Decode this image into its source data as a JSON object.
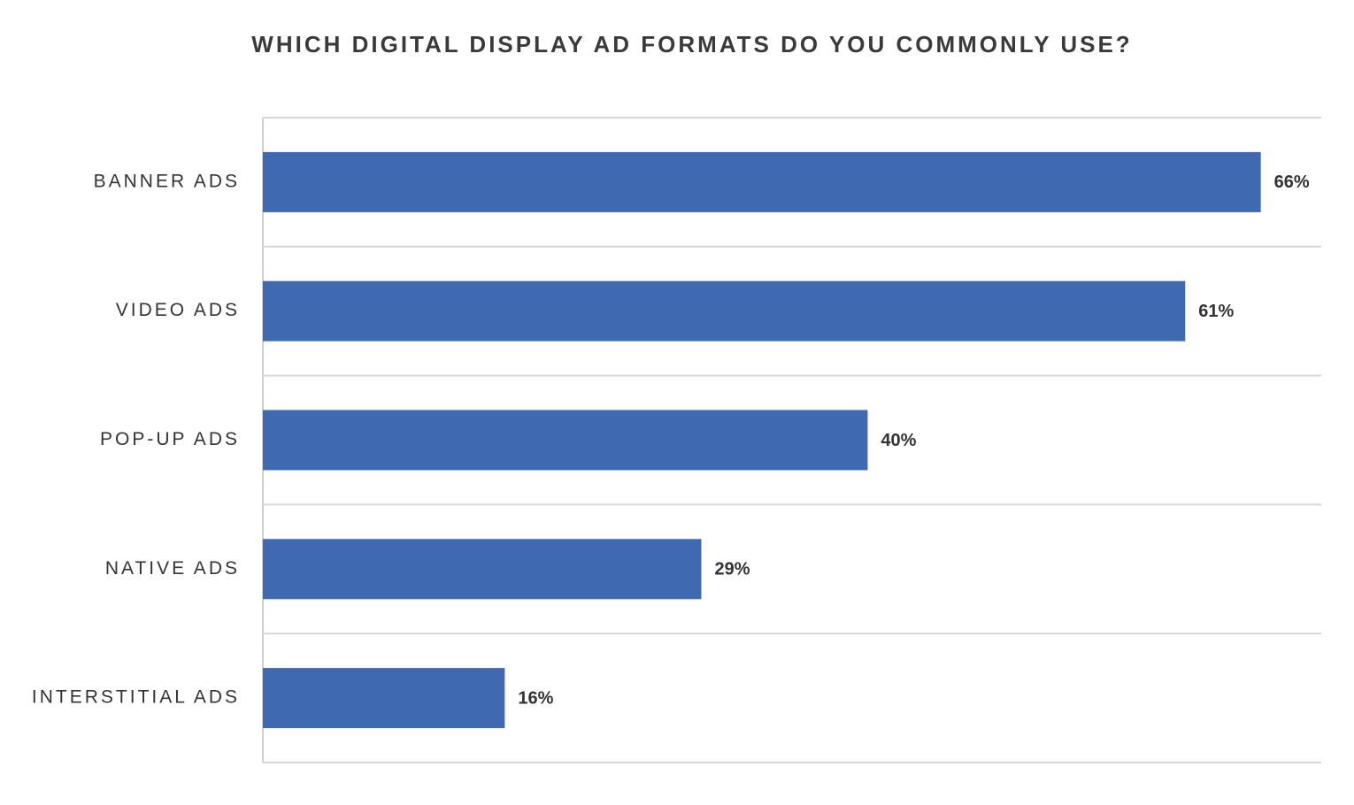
{
  "chart_data": {
    "type": "bar",
    "orientation": "horizontal",
    "title": "WHICH DIGITAL DISPLAY AD FORMATS DO YOU COMMONLY USE?",
    "categories": [
      "BANNER ADS",
      "VIDEO ADS",
      "POP-UP ADS",
      "NATIVE ADS",
      "INTERSTITIAL ADS"
    ],
    "values": [
      66,
      61,
      40,
      29,
      16
    ],
    "value_labels": [
      "66%",
      "61%",
      "40%",
      "29%",
      "16%"
    ],
    "color": "#3f69b1",
    "xlim": [
      0,
      70
    ]
  }
}
